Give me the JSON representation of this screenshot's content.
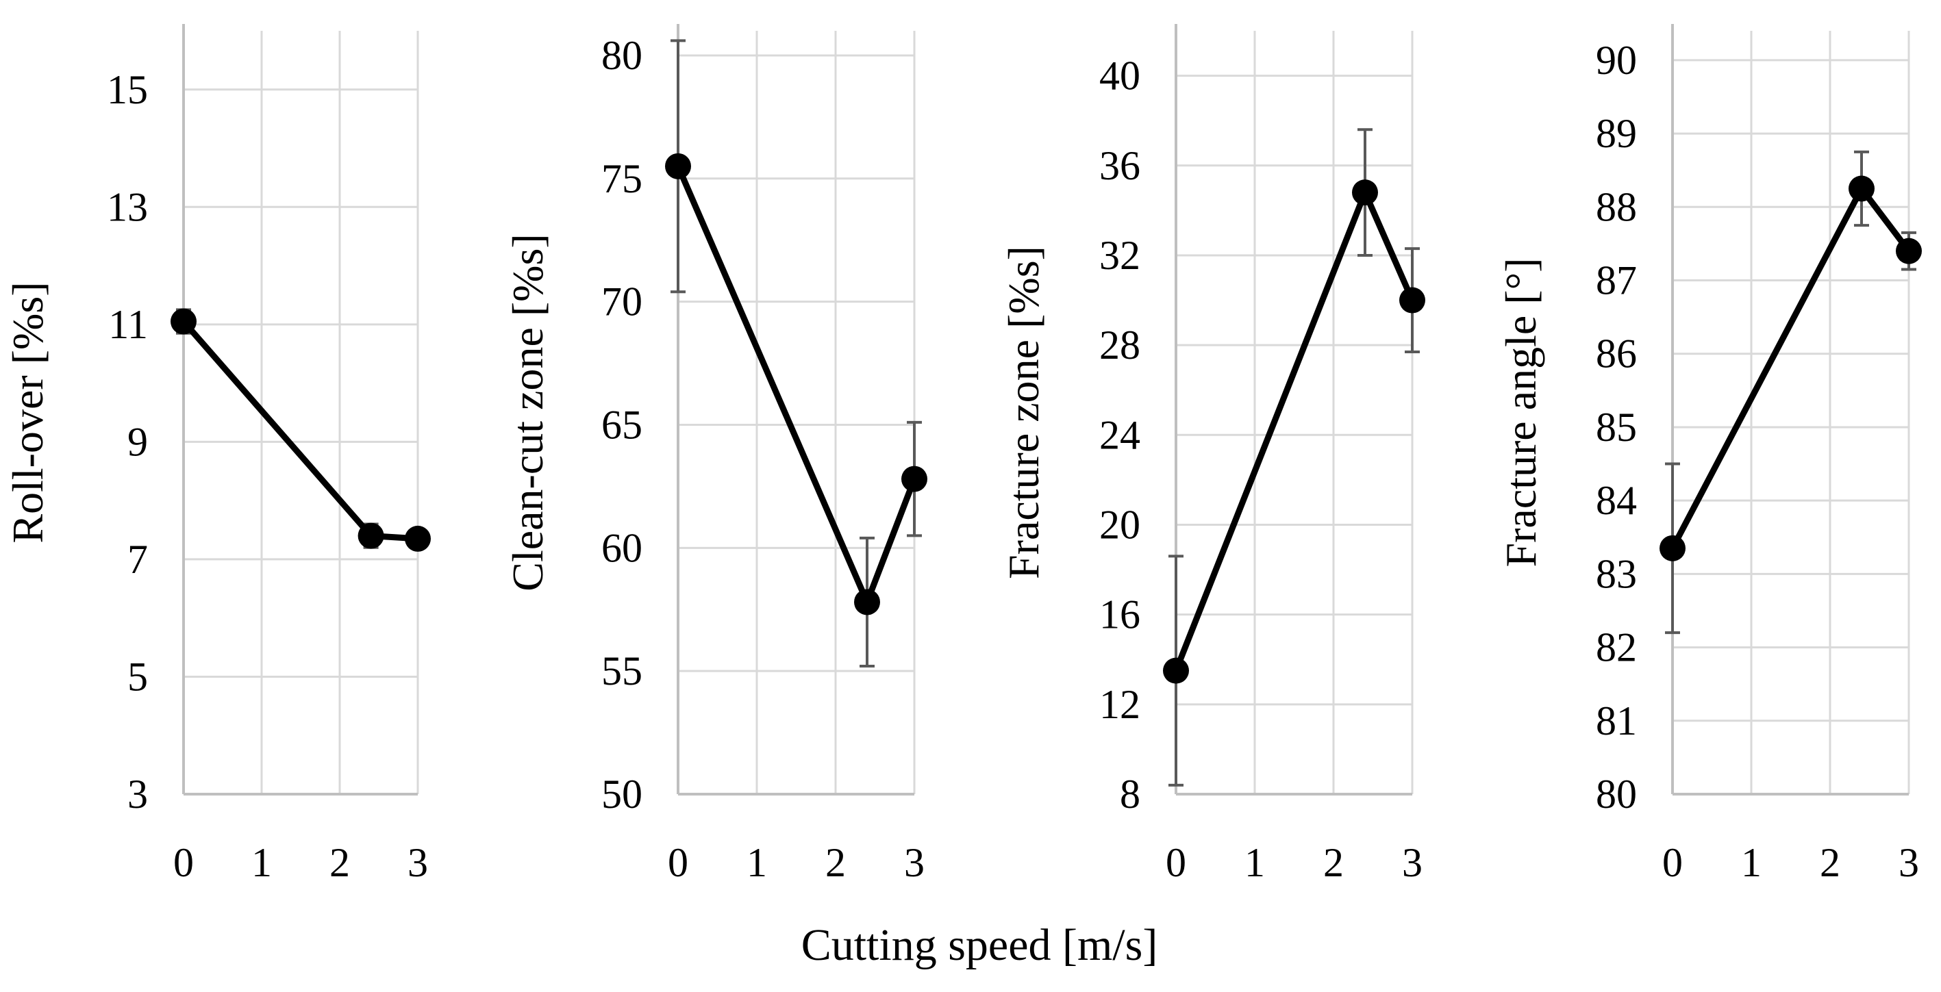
{
  "figure": {
    "shared_xlabel": "Cutting speed [m/s]"
  },
  "colors": {
    "grid": "#d9d9d9",
    "axis": "#bfbfbf",
    "series": "#000000",
    "errorbar": "#595959"
  },
  "chart_data": [
    {
      "type": "line",
      "title": "",
      "xlabel": "Cutting speed [m/s]",
      "ylabel": "Roll-over [%s]",
      "xlim": [
        0,
        3
      ],
      "xticks": [
        0,
        1,
        2,
        3
      ],
      "ylim": [
        3,
        16
      ],
      "yticks": [
        3,
        5,
        7,
        9,
        11,
        13,
        15
      ],
      "grid": true,
      "series": [
        {
          "name": "Roll-over",
          "x": [
            0,
            2.4,
            3
          ],
          "y": [
            11.05,
            7.4,
            7.35
          ],
          "err": [
            0.2,
            0.2,
            0.1
          ]
        }
      ]
    },
    {
      "type": "line",
      "title": "",
      "xlabel": "Cutting speed [m/s]",
      "ylabel": "Clean-cut zone [%s]",
      "xlim": [
        0,
        3
      ],
      "xticks": [
        0,
        1,
        2,
        3
      ],
      "ylim": [
        50,
        81
      ],
      "yticks": [
        50,
        55,
        60,
        65,
        70,
        75,
        80
      ],
      "grid": true,
      "series": [
        {
          "name": "Clean-cut zone",
          "x": [
            0,
            2.4,
            3
          ],
          "y": [
            75.5,
            57.8,
            62.8
          ],
          "err": [
            5.1,
            2.6,
            2.3
          ]
        }
      ]
    },
    {
      "type": "line",
      "title": "",
      "xlabel": "Cutting speed [m/s]",
      "ylabel": "Fracture zone [%s]",
      "xlim": [
        0,
        3
      ],
      "xticks": [
        0,
        1,
        2,
        3
      ],
      "ylim": [
        8,
        42
      ],
      "yticks": [
        8,
        12,
        16,
        20,
        24,
        28,
        32,
        36,
        40
      ],
      "grid": true,
      "series": [
        {
          "name": "Fracture zone",
          "x": [
            0,
            2.4,
            3
          ],
          "y": [
            13.5,
            34.8,
            30.0
          ],
          "err": [
            5.1,
            2.8,
            2.3
          ]
        }
      ]
    },
    {
      "type": "line",
      "title": "",
      "xlabel": "Cutting speed [m/s]",
      "ylabel": "Fracture angle [°]",
      "xlim": [
        0,
        3
      ],
      "xticks": [
        0,
        1,
        2,
        3
      ],
      "ylim": [
        80,
        90.4
      ],
      "yticks": [
        80,
        81,
        82,
        83,
        84,
        85,
        86,
        87,
        88,
        89,
        90
      ],
      "grid": true,
      "series": [
        {
          "name": "Fracture angle",
          "x": [
            0,
            2.4,
            3
          ],
          "y": [
            83.35,
            88.25,
            87.4
          ],
          "err": [
            1.15,
            0.5,
            0.25
          ]
        }
      ]
    }
  ]
}
